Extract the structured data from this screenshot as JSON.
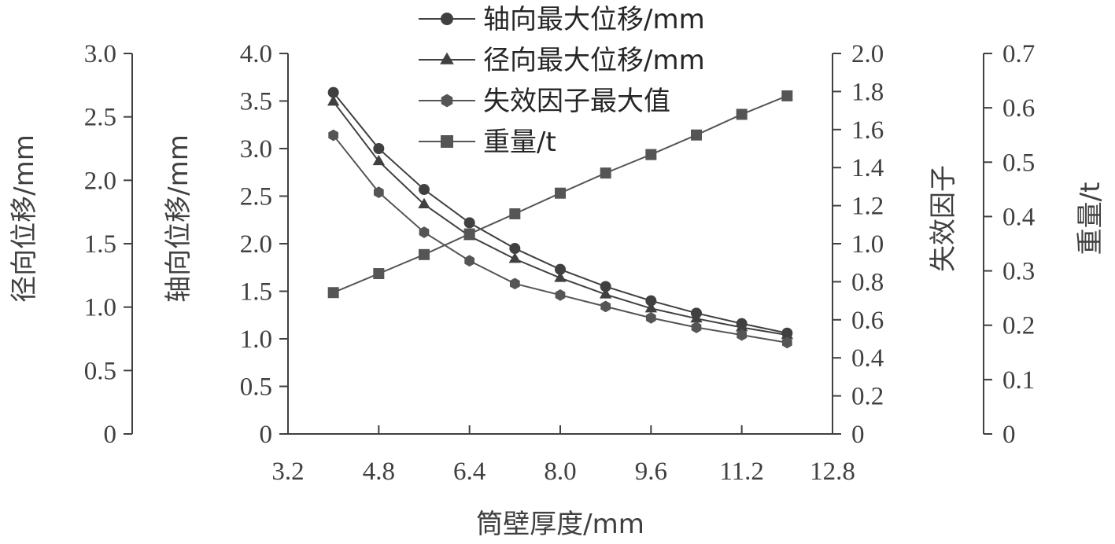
{
  "chart_data": {
    "type": "line",
    "xlabel": "筒壁厚度/mm",
    "xlim": [
      3.2,
      12.8
    ],
    "xticks": [
      "3.2",
      "4.8",
      "6.4",
      "8.0",
      "9.6",
      "11.2",
      "12.8"
    ],
    "x": [
      4.0,
      4.8,
      5.6,
      6.4,
      7.2,
      8.0,
      8.8,
      9.6,
      10.4,
      11.2,
      12.0
    ],
    "axes": {
      "radial": {
        "label": "径向位移/mm",
        "ylim": [
          0,
          3.0
        ],
        "ticks": [
          "0",
          "0.5",
          "1.0",
          "1.5",
          "2.0",
          "2.5",
          "3.0"
        ]
      },
      "axial": {
        "label": "轴向位移/mm",
        "ylim": [
          0,
          4.0
        ],
        "ticks": [
          "0",
          "0.5",
          "1.0",
          "1.5",
          "2.0",
          "2.5",
          "3.0",
          "3.5",
          "4.0"
        ]
      },
      "failure": {
        "label": "失效因子",
        "ylim": [
          0,
          2.0
        ],
        "ticks": [
          "0",
          "0.2",
          "0.4",
          "0.6",
          "0.8",
          "1.0",
          "1.2",
          "1.4",
          "1.6",
          "1.8",
          "2.0"
        ]
      },
      "weight": {
        "label": "重量/t",
        "ylim": [
          0,
          0.7
        ],
        "ticks": [
          "0",
          "0.1",
          "0.2",
          "0.3",
          "0.4",
          "0.5",
          "0.6",
          "0.7"
        ]
      }
    },
    "series": [
      {
        "name": "轴向最大位移/mm",
        "axis": "axial",
        "marker": "circle",
        "color": "#404040",
        "values": [
          3.59,
          3.0,
          2.57,
          2.22,
          1.95,
          1.73,
          1.55,
          1.4,
          1.27,
          1.16,
          1.06
        ]
      },
      {
        "name": "径向最大位移/mm",
        "axis": "radial",
        "marker": "triangle",
        "color": "#404040",
        "values": [
          2.62,
          2.15,
          1.81,
          1.56,
          1.38,
          1.23,
          1.1,
          0.99,
          0.91,
          0.84,
          0.78
        ]
      },
      {
        "name": "失效因子最大值",
        "axis": "failure",
        "marker": "hexagon",
        "color": "#555555",
        "values": [
          1.57,
          1.27,
          1.06,
          0.91,
          0.79,
          0.73,
          0.67,
          0.61,
          0.56,
          0.52,
          0.48
        ]
      },
      {
        "name": "重量/t",
        "axis": "weight",
        "marker": "square",
        "color": "#555555",
        "values": [
          0.26,
          0.295,
          0.33,
          0.368,
          0.405,
          0.443,
          0.48,
          0.514,
          0.55,
          0.588,
          0.622
        ]
      }
    ],
    "legend_position": "top-center",
    "grid": false
  }
}
